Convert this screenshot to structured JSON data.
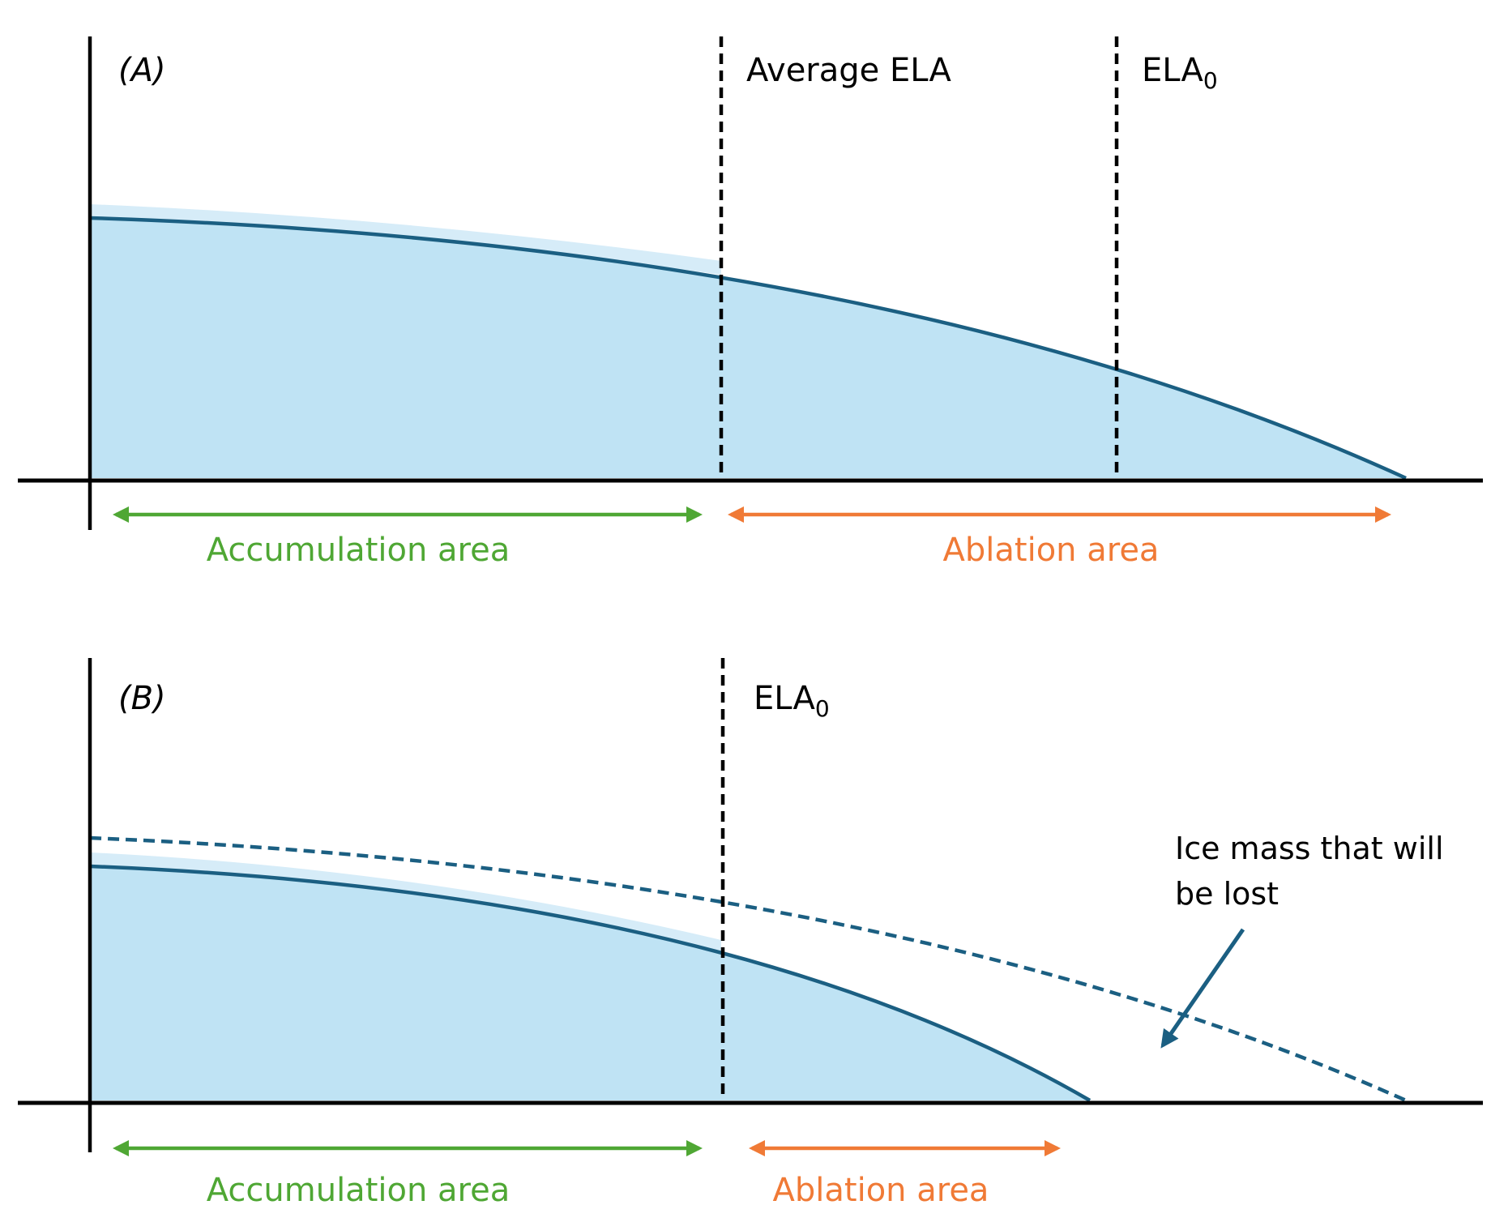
{
  "panel_a": {
    "tag": "(A)",
    "line1_label": "Average ELA",
    "line2_label_base": "ELA",
    "line2_label_sub": "0",
    "accumulation_label": "Accumulation area",
    "ablation_label": "Ablation area"
  },
  "panel_b": {
    "tag": "(B)",
    "line_label_base": "ELA",
    "line_label_sub": "0",
    "annotation_line1": "Ice mass that will",
    "annotation_line2": "be lost",
    "accumulation_label": "Accumulation area",
    "ablation_label": "Ablation area"
  },
  "colors": {
    "ice_fill": "#bfe3f4",
    "ice_outline": "#1b5f82",
    "axis": "#000000",
    "accumulation": "#4fa734",
    "ablation": "#f07a36"
  }
}
